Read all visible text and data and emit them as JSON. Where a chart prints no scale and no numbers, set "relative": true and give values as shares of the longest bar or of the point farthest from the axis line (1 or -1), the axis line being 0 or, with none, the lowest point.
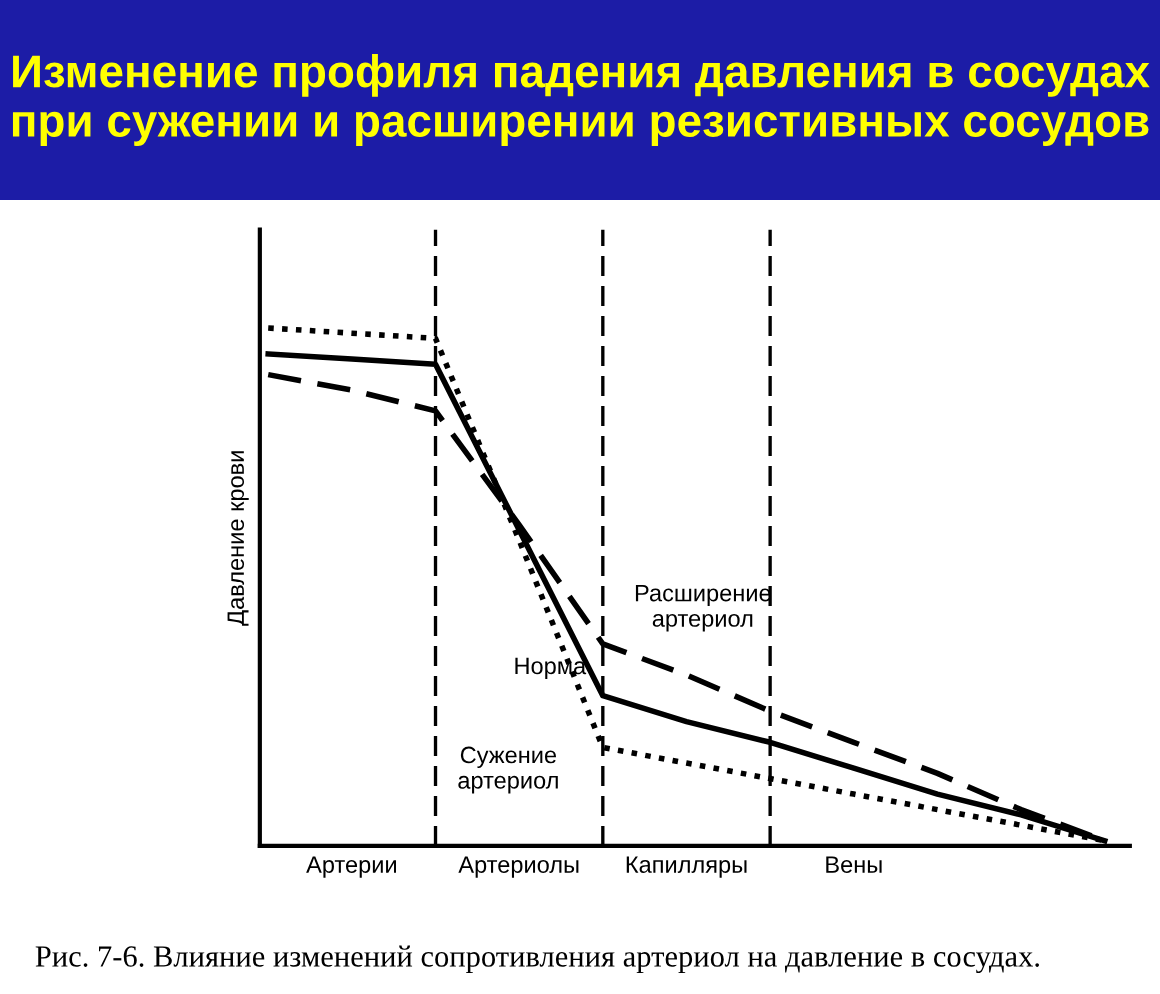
{
  "chart_data": {
    "type": "line",
    "title": "Изменение профиля падения давления в сосудах при сужении и расширении резистивных сосудов",
    "ylabel": "Давление крови",
    "relative": true,
    "categories": [
      null,
      "Артерии",
      null,
      "Артериолы",
      null,
      "Капилляры",
      null,
      "Вены",
      null,
      null,
      null
    ],
    "legend": false,
    "grid": "x",
    "marker": "none",
    "series": [
      {
        "name": "Норма",
        "color": "#000000",
        "line_style": "solid",
        "values": [
          0.95,
          0.94,
          0.93,
          0.61,
          0.29,
          0.24,
          0.2,
          0.15,
          0.1,
          0.06,
          0.01
        ]
      },
      {
        "name": "Расширение\nартериол",
        "color": "#000000",
        "line_style": "dashed",
        "values": [
          0.91,
          0.88,
          0.84,
          0.62,
          0.39,
          0.33,
          0.26,
          0.2,
          0.14,
          0.07,
          0.01
        ]
      },
      {
        "name": "Сужение\nартериол",
        "color": "#000000",
        "line_style": "dotted",
        "values": [
          1.0,
          0.99,
          0.98,
          0.59,
          0.19,
          0.16,
          0.13,
          0.1,
          0.07,
          0.04,
          0.01
        ]
      }
    ],
    "annotations": [
      "Рис. 7-6. Влияние изменений сопротивления артериол на давление в сосудах."
    ]
  }
}
